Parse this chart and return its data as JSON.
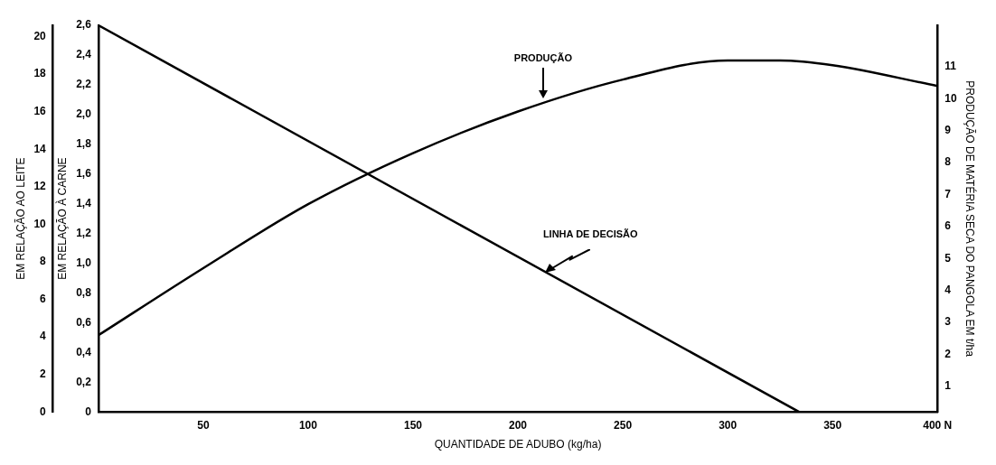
{
  "chart_data": {
    "type": "line",
    "xlabel": "QUANTIDADE DE ADUBO (kg/ha)",
    "ylabel": "EM RELAÇÃO À CARNE",
    "y3label": "EM RELAÇÃO AO LEITE",
    "y2label": "PRODUÇÃO DE MATÉRIA SECA DO PANGOLA EM t/ha",
    "xlim": [
      0,
      400
    ],
    "xticks": [
      50,
      100,
      150,
      200,
      250,
      300,
      350,
      {
        "value": 400,
        "label": "400 N"
      }
    ],
    "ylim": [
      0,
      2.6
    ],
    "yticks": [
      0,
      {
        "value": 0.2,
        "label": "0,2"
      },
      {
        "value": 0.4,
        "label": "0,4"
      },
      {
        "value": 0.6,
        "label": "0,6"
      },
      {
        "value": 0.8,
        "label": "0,8"
      },
      {
        "value": 1.0,
        "label": "1,0"
      },
      {
        "value": 1.2,
        "label": "1,2"
      },
      {
        "value": 1.4,
        "label": "1,4"
      },
      {
        "value": 1.6,
        "label": "1,6"
      },
      {
        "value": 1.8,
        "label": "1,8"
      },
      {
        "value": 2.0,
        "label": "2,0"
      },
      {
        "value": 2.2,
        "label": "2,2"
      },
      {
        "value": 2.4,
        "label": "2,4"
      },
      {
        "value": 2.6,
        "label": "2,6"
      }
    ],
    "y3lim": [
      0,
      20.6
    ],
    "y3ticks": [
      0,
      2,
      4,
      6,
      8,
      10,
      12,
      14,
      16,
      18,
      20
    ],
    "y2lim": [
      0.2,
      12.3
    ],
    "y2ticks": [
      1,
      2,
      3,
      4,
      5,
      6,
      7,
      8,
      9,
      10,
      11
    ],
    "grid": false,
    "legend": false,
    "series": [
      {
        "name": "PRODUÇÃO",
        "color": "#000000",
        "axis": "y2",
        "x": [
          0,
          50,
          100,
          150,
          200,
          250,
          300,
          325,
          350,
          400
        ],
        "values": [
          2.6,
          4.7,
          6.7,
          8.3,
          9.6,
          10.6,
          11.2,
          11.2,
          11.05,
          10.4
        ]
      },
      {
        "name": "LINHA DE DECISÃO",
        "color": "#000000",
        "x": [
          0,
          334
        ],
        "values": [
          2.6,
          0
        ]
      }
    ]
  }
}
